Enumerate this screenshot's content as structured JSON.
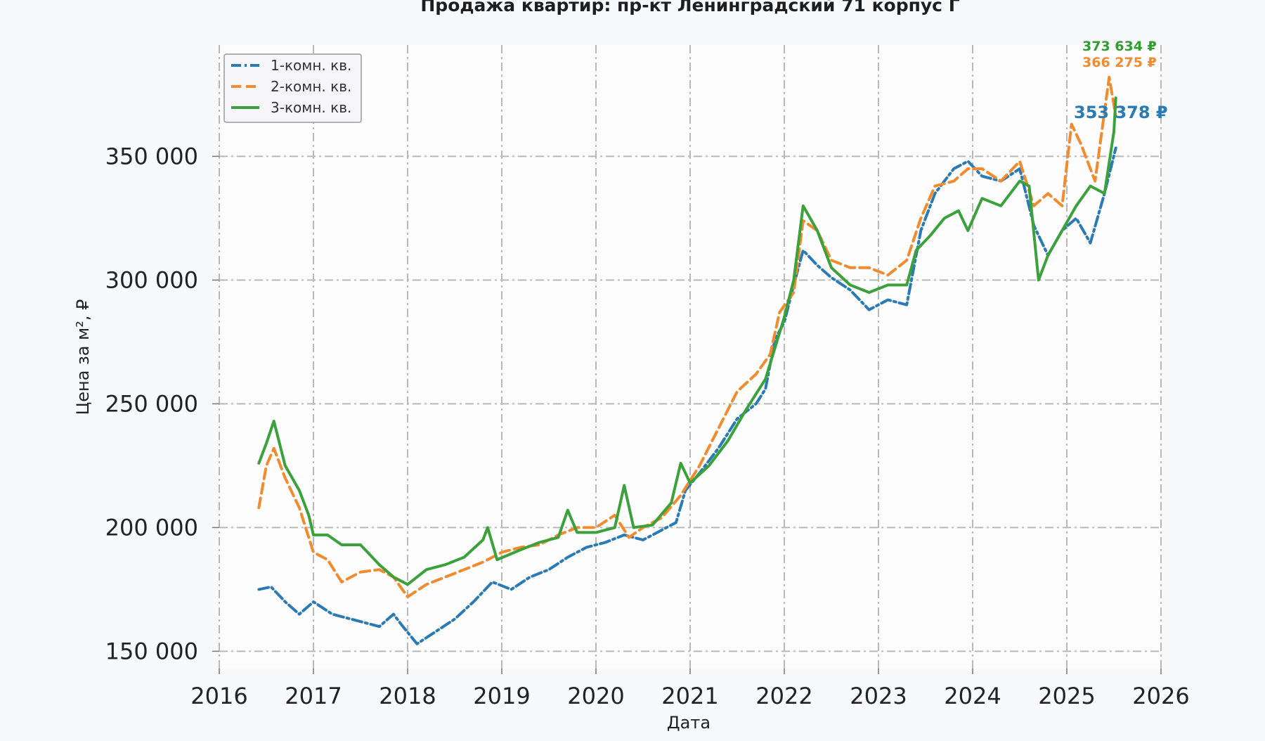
{
  "chart_data": {
    "type": "line",
    "title": "Продажа квартир: пр-кт Ленинградский 71 корпус Г",
    "xlabel": "Дата",
    "ylabel": "Цена за м², ₽",
    "xlim": [
      2016,
      2026
    ],
    "ylim": [
      143000,
      395000
    ],
    "xticks": [
      {
        "value": 2016,
        "label": "2016"
      },
      {
        "value": 2017,
        "label": "2017"
      },
      {
        "value": 2018,
        "label": "2018"
      },
      {
        "value": 2019,
        "label": "2019"
      },
      {
        "value": 2020,
        "label": "2020"
      },
      {
        "value": 2021,
        "label": "2021"
      },
      {
        "value": 2022,
        "label": "2022"
      },
      {
        "value": 2023,
        "label": "2023"
      },
      {
        "value": 2024,
        "label": "2024"
      },
      {
        "value": 2025,
        "label": "2025"
      },
      {
        "value": 2026,
        "label": "2026"
      }
    ],
    "yticks": [
      {
        "value": 150000,
        "label": "150 000"
      },
      {
        "value": 200000,
        "label": "200 000"
      },
      {
        "value": 250000,
        "label": "250 000"
      },
      {
        "value": 300000,
        "label": "300 000"
      },
      {
        "value": 350000,
        "label": "350 000"
      }
    ],
    "grid": true,
    "legend_position": "top-left",
    "series": [
      {
        "name": "1-комн. кв.",
        "color": "#2a7ab5",
        "dash": "dashdot",
        "x": [
          2016.42,
          2016.55,
          2016.7,
          2016.85,
          2017.0,
          2017.2,
          2017.5,
          2017.7,
          2017.85,
          2017.95,
          2018.1,
          2018.3,
          2018.5,
          2018.7,
          2018.9,
          2019.1,
          2019.3,
          2019.5,
          2019.7,
          2019.9,
          2020.1,
          2020.3,
          2020.5,
          2020.7,
          2020.85,
          2020.95,
          2021.1,
          2021.3,
          2021.5,
          2021.7,
          2021.8,
          2021.9,
          2022.0,
          2022.1,
          2022.2,
          2022.35,
          2022.5,
          2022.7,
          2022.9,
          2023.1,
          2023.3,
          2023.45,
          2023.6,
          2023.8,
          2023.95,
          2024.1,
          2024.3,
          2024.5,
          2024.65,
          2024.8,
          2024.95,
          2025.1,
          2025.25,
          2025.4,
          2025.52
        ],
        "y": [
          175000,
          176000,
          170000,
          165000,
          170000,
          165000,
          162000,
          160000,
          165000,
          160000,
          153000,
          158000,
          163000,
          170000,
          178000,
          175000,
          180000,
          183000,
          188000,
          192000,
          194000,
          197000,
          195000,
          199000,
          202000,
          215000,
          222000,
          232000,
          244000,
          250000,
          256000,
          276000,
          283000,
          298000,
          312000,
          306000,
          301000,
          296000,
          288000,
          292000,
          290000,
          320000,
          335000,
          345000,
          348000,
          342000,
          340000,
          345000,
          322000,
          310000,
          320000,
          325000,
          315000,
          335000,
          353378
        ]
      },
      {
        "name": "2-комн. кв.",
        "color": "#f28a2e",
        "dash": "dashed",
        "x": [
          2016.42,
          2016.5,
          2016.58,
          2016.7,
          2016.85,
          2017.0,
          2017.15,
          2017.3,
          2017.5,
          2017.7,
          2017.85,
          2018.0,
          2018.2,
          2018.4,
          2018.6,
          2018.8,
          2019.0,
          2019.2,
          2019.4,
          2019.6,
          2019.8,
          2020.0,
          2020.2,
          2020.35,
          2020.5,
          2020.7,
          2020.9,
          2021.1,
          2021.3,
          2021.5,
          2021.7,
          2021.85,
          2021.95,
          2022.1,
          2022.2,
          2022.35,
          2022.5,
          2022.7,
          2022.9,
          2023.1,
          2023.3,
          2023.45,
          2023.6,
          2023.8,
          2023.95,
          2024.1,
          2024.3,
          2024.5,
          2024.65,
          2024.8,
          2024.95,
          2025.05,
          2025.15,
          2025.3,
          2025.45,
          2025.52
        ],
        "y": [
          208000,
          225000,
          232000,
          220000,
          208000,
          190000,
          187000,
          178000,
          182000,
          183000,
          180000,
          172000,
          177000,
          180000,
          183000,
          186000,
          190000,
          192000,
          193000,
          197000,
          200000,
          200000,
          205000,
          196000,
          200000,
          204000,
          213000,
          225000,
          240000,
          255000,
          262000,
          270000,
          287000,
          295000,
          324000,
          320000,
          308000,
          305000,
          305000,
          302000,
          308000,
          325000,
          338000,
          340000,
          345000,
          345000,
          340000,
          348000,
          330000,
          335000,
          330000,
          363000,
          355000,
          340000,
          382000,
          366275
        ]
      },
      {
        "name": "3-комн. кв.",
        "color": "#3ba13a",
        "dash": "solid",
        "x": [
          2016.42,
          2016.5,
          2016.58,
          2016.7,
          2016.85,
          2016.95,
          2017.0,
          2017.15,
          2017.3,
          2017.5,
          2017.7,
          2017.85,
          2018.0,
          2018.2,
          2018.4,
          2018.6,
          2018.8,
          2018.85,
          2018.95,
          2019.2,
          2019.4,
          2019.6,
          2019.7,
          2019.8,
          2020.0,
          2020.2,
          2020.3,
          2020.4,
          2020.6,
          2020.8,
          2020.9,
          2021.0,
          2021.2,
          2021.4,
          2021.6,
          2021.8,
          2022.0,
          2022.1,
          2022.2,
          2022.35,
          2022.5,
          2022.7,
          2022.9,
          2023.1,
          2023.3,
          2023.4,
          2023.55,
          2023.7,
          2023.85,
          2023.95,
          2024.1,
          2024.3,
          2024.5,
          2024.6,
          2024.7,
          2024.8,
          2024.95,
          2025.1,
          2025.25,
          2025.4,
          2025.5,
          2025.52
        ],
        "y": [
          226000,
          234000,
          243000,
          225000,
          215000,
          205000,
          197000,
          197000,
          193000,
          193000,
          185000,
          180000,
          177000,
          183000,
          185000,
          188000,
          195000,
          200000,
          187000,
          191000,
          194000,
          196000,
          207000,
          198000,
          198000,
          200000,
          217000,
          200000,
          201000,
          210000,
          226000,
          218000,
          225000,
          235000,
          248000,
          260000,
          285000,
          300000,
          330000,
          320000,
          305000,
          298000,
          295000,
          298000,
          298000,
          312000,
          318000,
          325000,
          328000,
          320000,
          333000,
          330000,
          340000,
          338000,
          300000,
          310000,
          320000,
          330000,
          338000,
          335000,
          360000,
          373634
        ]
      }
    ],
    "annotations": [
      {
        "text": "373 634 ₽",
        "color": "#2e9e2e",
        "series": "3-комн. кв."
      },
      {
        "text": "366 275 ₽",
        "color": "#f28a2e",
        "series": "2-комн. кв."
      },
      {
        "text": "353 378 ₽",
        "color": "#2a7ab5",
        "series": "1-комн. кв."
      }
    ]
  }
}
